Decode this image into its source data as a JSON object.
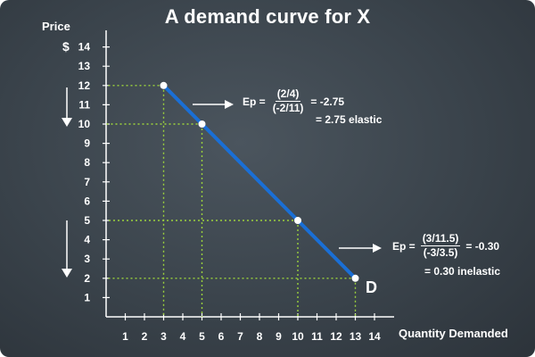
{
  "chart_data": {
    "type": "line",
    "title": "A demand curve for X",
    "xlabel": "Quantity Demanded",
    "ylabel": "Price",
    "yunit": "$",
    "xlim": [
      0,
      15
    ],
    "ylim": [
      0,
      15
    ],
    "xticks": [
      1,
      2,
      3,
      4,
      5,
      6,
      7,
      8,
      9,
      10,
      11,
      12,
      13,
      14
    ],
    "yticks": [
      1,
      2,
      3,
      4,
      5,
      6,
      7,
      8,
      9,
      10,
      11,
      12,
      13,
      14
    ],
    "series": [
      {
        "name": "D",
        "points": [
          {
            "x": 3,
            "y": 12
          },
          {
            "x": 5,
            "y": 10
          },
          {
            "x": 10,
            "y": 5
          },
          {
            "x": 13,
            "y": 2
          }
        ]
      }
    ],
    "reference_points": [
      {
        "x": 3,
        "y": 12
      },
      {
        "x": 5,
        "y": 10
      },
      {
        "x": 10,
        "y": 5
      },
      {
        "x": 13,
        "y": 2
      }
    ],
    "annotations": [
      {
        "prefix": "Ep =",
        "numerator": "(2/4)",
        "denominator": "(-2/11)",
        "result": "= -2.75",
        "note": "= 2.75 elastic",
        "near_point": {
          "x": 3,
          "y": 12
        }
      },
      {
        "prefix": "Ep =",
        "numerator": "(3/11.5)",
        "denominator": "(-3/3.5)",
        "result": "= -0.30",
        "note": "= 0.30 inelastic",
        "near_point": {
          "x": 13,
          "y": 2
        }
      }
    ],
    "grid": false,
    "colors": {
      "background": "#3a434b",
      "curve": "#1a6fd6",
      "guides": "#9bd23c",
      "axis": "#ffffff",
      "text": "#ffffff",
      "point": "#ffffff"
    }
  }
}
